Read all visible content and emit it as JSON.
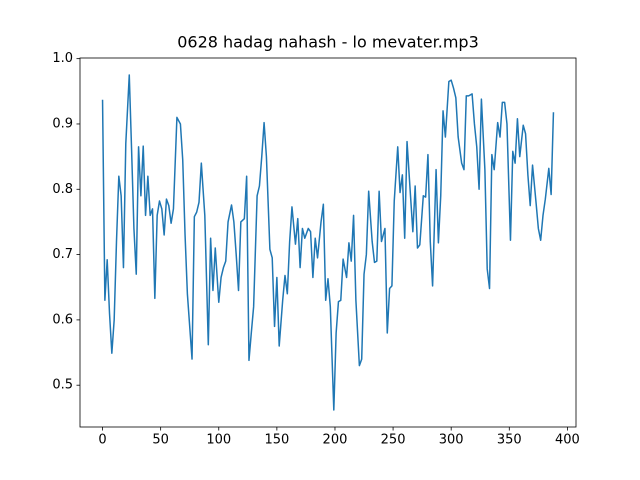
{
  "chart_data": {
    "type": "line",
    "title": "0628 hadag nahash - lo mevater.mp3",
    "x": [
      0,
      2,
      4,
      6,
      8,
      10,
      12,
      14,
      16,
      18,
      20,
      23,
      25,
      27,
      29,
      31,
      33,
      35,
      37,
      39,
      41,
      43,
      45,
      47,
      49,
      51,
      53,
      55,
      57,
      59,
      61,
      64,
      67,
      69,
      71,
      73,
      77,
      79,
      81,
      83,
      85,
      88,
      91,
      93,
      95,
      97,
      100,
      102,
      104,
      106,
      108,
      111,
      113,
      115,
      117,
      119,
      122,
      124,
      126,
      128,
      130,
      133,
      135,
      137,
      139,
      141,
      144,
      146,
      148,
      150,
      152,
      155,
      157,
      159,
      161,
      163,
      166,
      168,
      170,
      172,
      174,
      177,
      179,
      181,
      183,
      185,
      188,
      190,
      192,
      194,
      196,
      199,
      201,
      203,
      205,
      207,
      210,
      212,
      214,
      216,
      218,
      221,
      223,
      225,
      227,
      229,
      232,
      234,
      236,
      238,
      240,
      243,
      245,
      247,
      249,
      251,
      254,
      256,
      258,
      260,
      262,
      265,
      267,
      269,
      271,
      273,
      276,
      278,
      280,
      282,
      284,
      287,
      289,
      291,
      293,
      295,
      298,
      300,
      302,
      304,
      306,
      309,
      311,
      313,
      315,
      318,
      320,
      322,
      324,
      326,
      329,
      331,
      333,
      335,
      337,
      340,
      342,
      344,
      346,
      348,
      351,
      353,
      355,
      357,
      359,
      362,
      364,
      366,
      368,
      370,
      373,
      375,
      377,
      379,
      381,
      384,
      386,
      388
    ],
    "series": [
      {
        "color": "#1f77b4",
        "values": [
          0.937,
          0.63,
          0.692,
          0.61,
          0.549,
          0.6,
          0.72,
          0.82,
          0.79,
          0.68,
          0.87,
          0.975,
          0.86,
          0.74,
          0.67,
          0.865,
          0.79,
          0.866,
          0.76,
          0.82,
          0.76,
          0.77,
          0.633,
          0.76,
          0.782,
          0.77,
          0.73,
          0.785,
          0.775,
          0.748,
          0.77,
          0.91,
          0.9,
          0.845,
          0.73,
          0.64,
          0.54,
          0.758,
          0.765,
          0.78,
          0.84,
          0.76,
          0.562,
          0.725,
          0.645,
          0.71,
          0.627,
          0.665,
          0.68,
          0.69,
          0.75,
          0.776,
          0.75,
          0.7,
          0.645,
          0.75,
          0.755,
          0.82,
          0.538,
          0.58,
          0.62,
          0.79,
          0.805,
          0.85,
          0.902,
          0.85,
          0.708,
          0.695,
          0.59,
          0.665,
          0.56,
          0.63,
          0.668,
          0.64,
          0.72,
          0.773,
          0.716,
          0.755,
          0.68,
          0.74,
          0.725,
          0.74,
          0.735,
          0.665,
          0.725,
          0.695,
          0.75,
          0.777,
          0.63,
          0.663,
          0.62,
          0.462,
          0.58,
          0.628,
          0.63,
          0.693,
          0.665,
          0.718,
          0.69,
          0.76,
          0.63,
          0.53,
          0.54,
          0.67,
          0.7,
          0.797,
          0.72,
          0.688,
          0.69,
          0.797,
          0.72,
          0.74,
          0.58,
          0.648,
          0.652,
          0.782,
          0.865,
          0.795,
          0.822,
          0.725,
          0.873,
          0.79,
          0.735,
          0.805,
          0.71,
          0.715,
          0.79,
          0.788,
          0.853,
          0.72,
          0.652,
          0.83,
          0.718,
          0.79,
          0.92,
          0.88,
          0.965,
          0.967,
          0.955,
          0.94,
          0.88,
          0.84,
          0.83,
          0.943,
          0.943,
          0.946,
          0.9,
          0.865,
          0.8,
          0.938,
          0.83,
          0.678,
          0.648,
          0.853,
          0.83,
          0.902,
          0.88,
          0.933,
          0.933,
          0.9,
          0.722,
          0.858,
          0.84,
          0.908,
          0.85,
          0.898,
          0.885,
          0.822,
          0.775,
          0.837,
          0.78,
          0.74,
          0.722,
          0.76,
          0.785,
          0.832,
          0.792,
          0.918
        ]
      }
    ],
    "xlim": [
      -19.4,
      407.4
    ],
    "xticks": [
      0,
      50,
      100,
      150,
      200,
      250,
      300,
      350,
      400
    ],
    "ylim": [
      0.436,
      1.001
    ],
    "yticks": [
      0.5,
      0.6,
      0.7,
      0.8,
      0.9,
      {
        "value": 1.0,
        "label": "1.0"
      }
    ]
  }
}
